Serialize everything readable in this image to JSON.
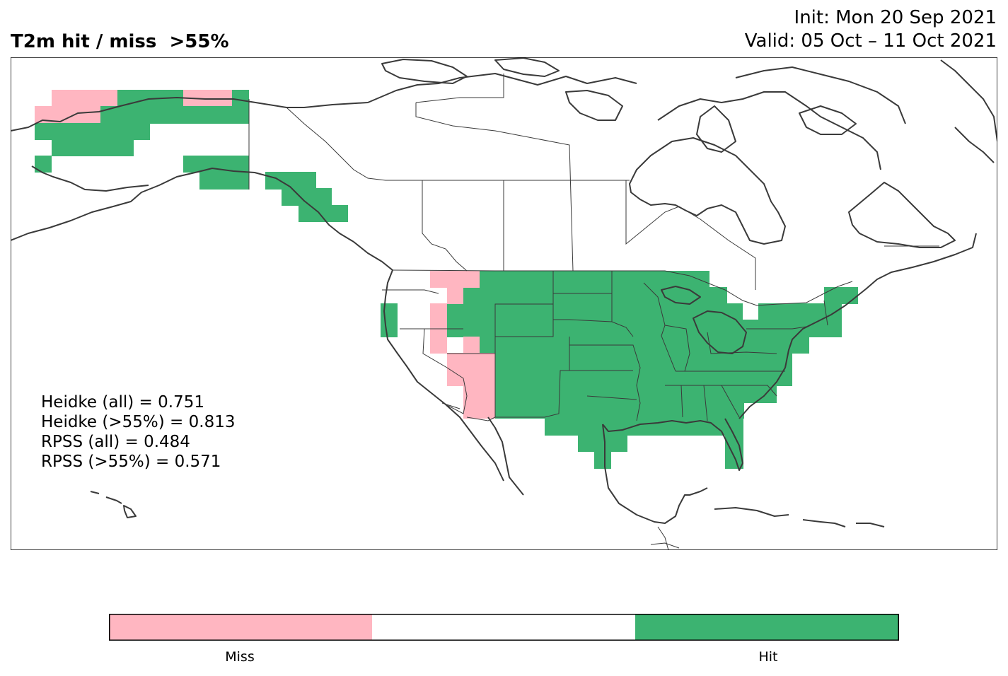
{
  "header": {
    "title": "T2m hit / miss  >55%",
    "init": "Init: Mon 20 Sep 2021",
    "valid": "Valid: 05 Oct – 11 Oct 2021"
  },
  "scores": [
    "Heidke (all) = 0.751",
    "Heidke (>55%) = 0.813",
    "RPSS (all) = 0.484",
    "RPSS (>55%) = 0.571"
  ],
  "legend": {
    "miss_label": "Miss",
    "hit_label": "Hit",
    "colors": {
      "miss": "#ffb6c1",
      "neutral": "#ffffff",
      "hit": "#3cb371"
    }
  },
  "colors": {
    "coast": "#3a3a3a",
    "frame": "#000000"
  }
}
